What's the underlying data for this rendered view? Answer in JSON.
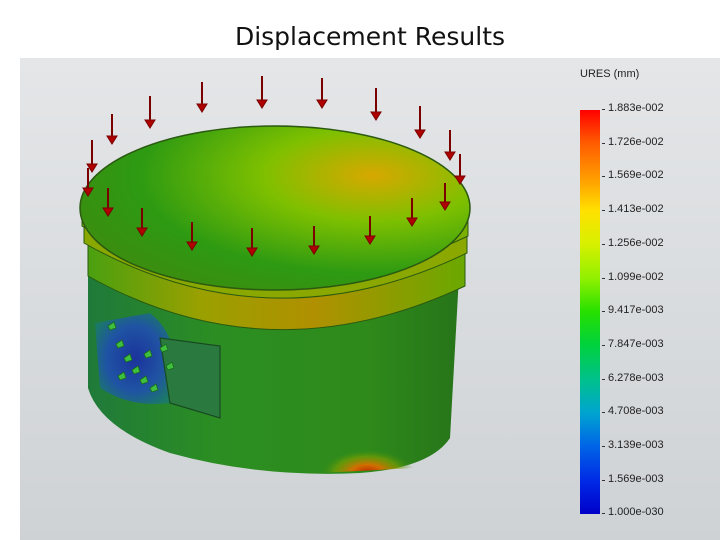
{
  "slide": {
    "title": "Displacement Results"
  },
  "legend": {
    "title": "URES (mm)",
    "values": [
      "1.883e-002",
      "1.726e-002",
      "1.569e-002",
      "1.413e-002",
      "1.256e-002",
      "1.099e-002",
      "9.417e-003",
      "7.847e-003",
      "6.278e-003",
      "4.708e-003",
      "3.139e-003",
      "1.569e-003",
      "1.000e-030"
    ],
    "colors": [
      "#ff0000",
      "#ff5a00",
      "#ff9d00",
      "#ffe100",
      "#d8f000",
      "#8df000",
      "#26e000",
      "#00d23c",
      "#00c08e",
      "#00a4d0",
      "#0066e6",
      "#0028e6",
      "#0000c8"
    ]
  },
  "model": {
    "part": "piston",
    "load_icon": "red-arrow-icon",
    "fixture_icon": "green-fixture-arrow-icon",
    "background_color": "#dadcdf"
  }
}
